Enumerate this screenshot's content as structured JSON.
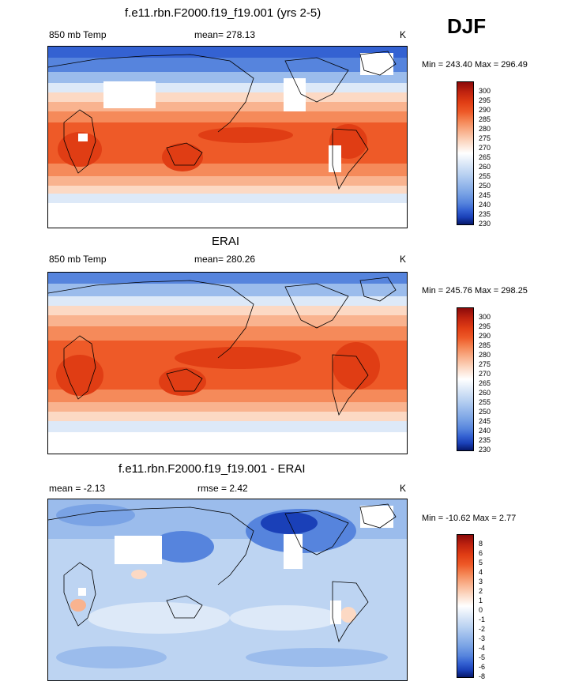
{
  "header": {
    "season": "DJF"
  },
  "levels_main": [
    "300",
    "295",
    "290",
    "285",
    "280",
    "275",
    "270",
    "265",
    "260",
    "255",
    "250",
    "245",
    "240",
    "235",
    "230"
  ],
  "levels_diff": [
    "8",
    "6",
    "5",
    "4",
    "3",
    "2",
    "1",
    "0",
    "-1",
    "-2",
    "-3",
    "-4",
    "-5",
    "-6",
    "-8"
  ],
  "colors": {
    "warm": [
      "#8b0a0a",
      "#c0230f",
      "#e03d14",
      "#ee5a28",
      "#f58a5a",
      "#f9b38f",
      "#fcd9c4",
      "#ffffff"
    ],
    "cool": [
      "#dde9f8",
      "#bdd4f2",
      "#9bbcec",
      "#7aa3e5",
      "#5684dd",
      "#3462d2",
      "#1a40b8",
      "#0a2690",
      "#06186a"
    ]
  },
  "panels": [
    {
      "title": "f.e11.rbn.F2000.f19_f19.001 (yrs 2-5)",
      "left_label": "850 mb Temp",
      "center_label": "mean= 278.13",
      "units": "K",
      "minmax": "Min = 243.40 Max = 296.49"
    },
    {
      "title": "ERAI",
      "left_label": "850 mb Temp",
      "center_label": "mean= 280.26",
      "units": "K",
      "minmax": "Min = 245.76 Max = 298.25"
    },
    {
      "title": "f.e11.rbn.F2000.f19_f19.001 - ERAI",
      "left_label": "mean =  -2.13",
      "center_label": "rmse =   2.42",
      "units": "K",
      "minmax": "Min = -10.62 Max =   2.77"
    }
  ]
}
